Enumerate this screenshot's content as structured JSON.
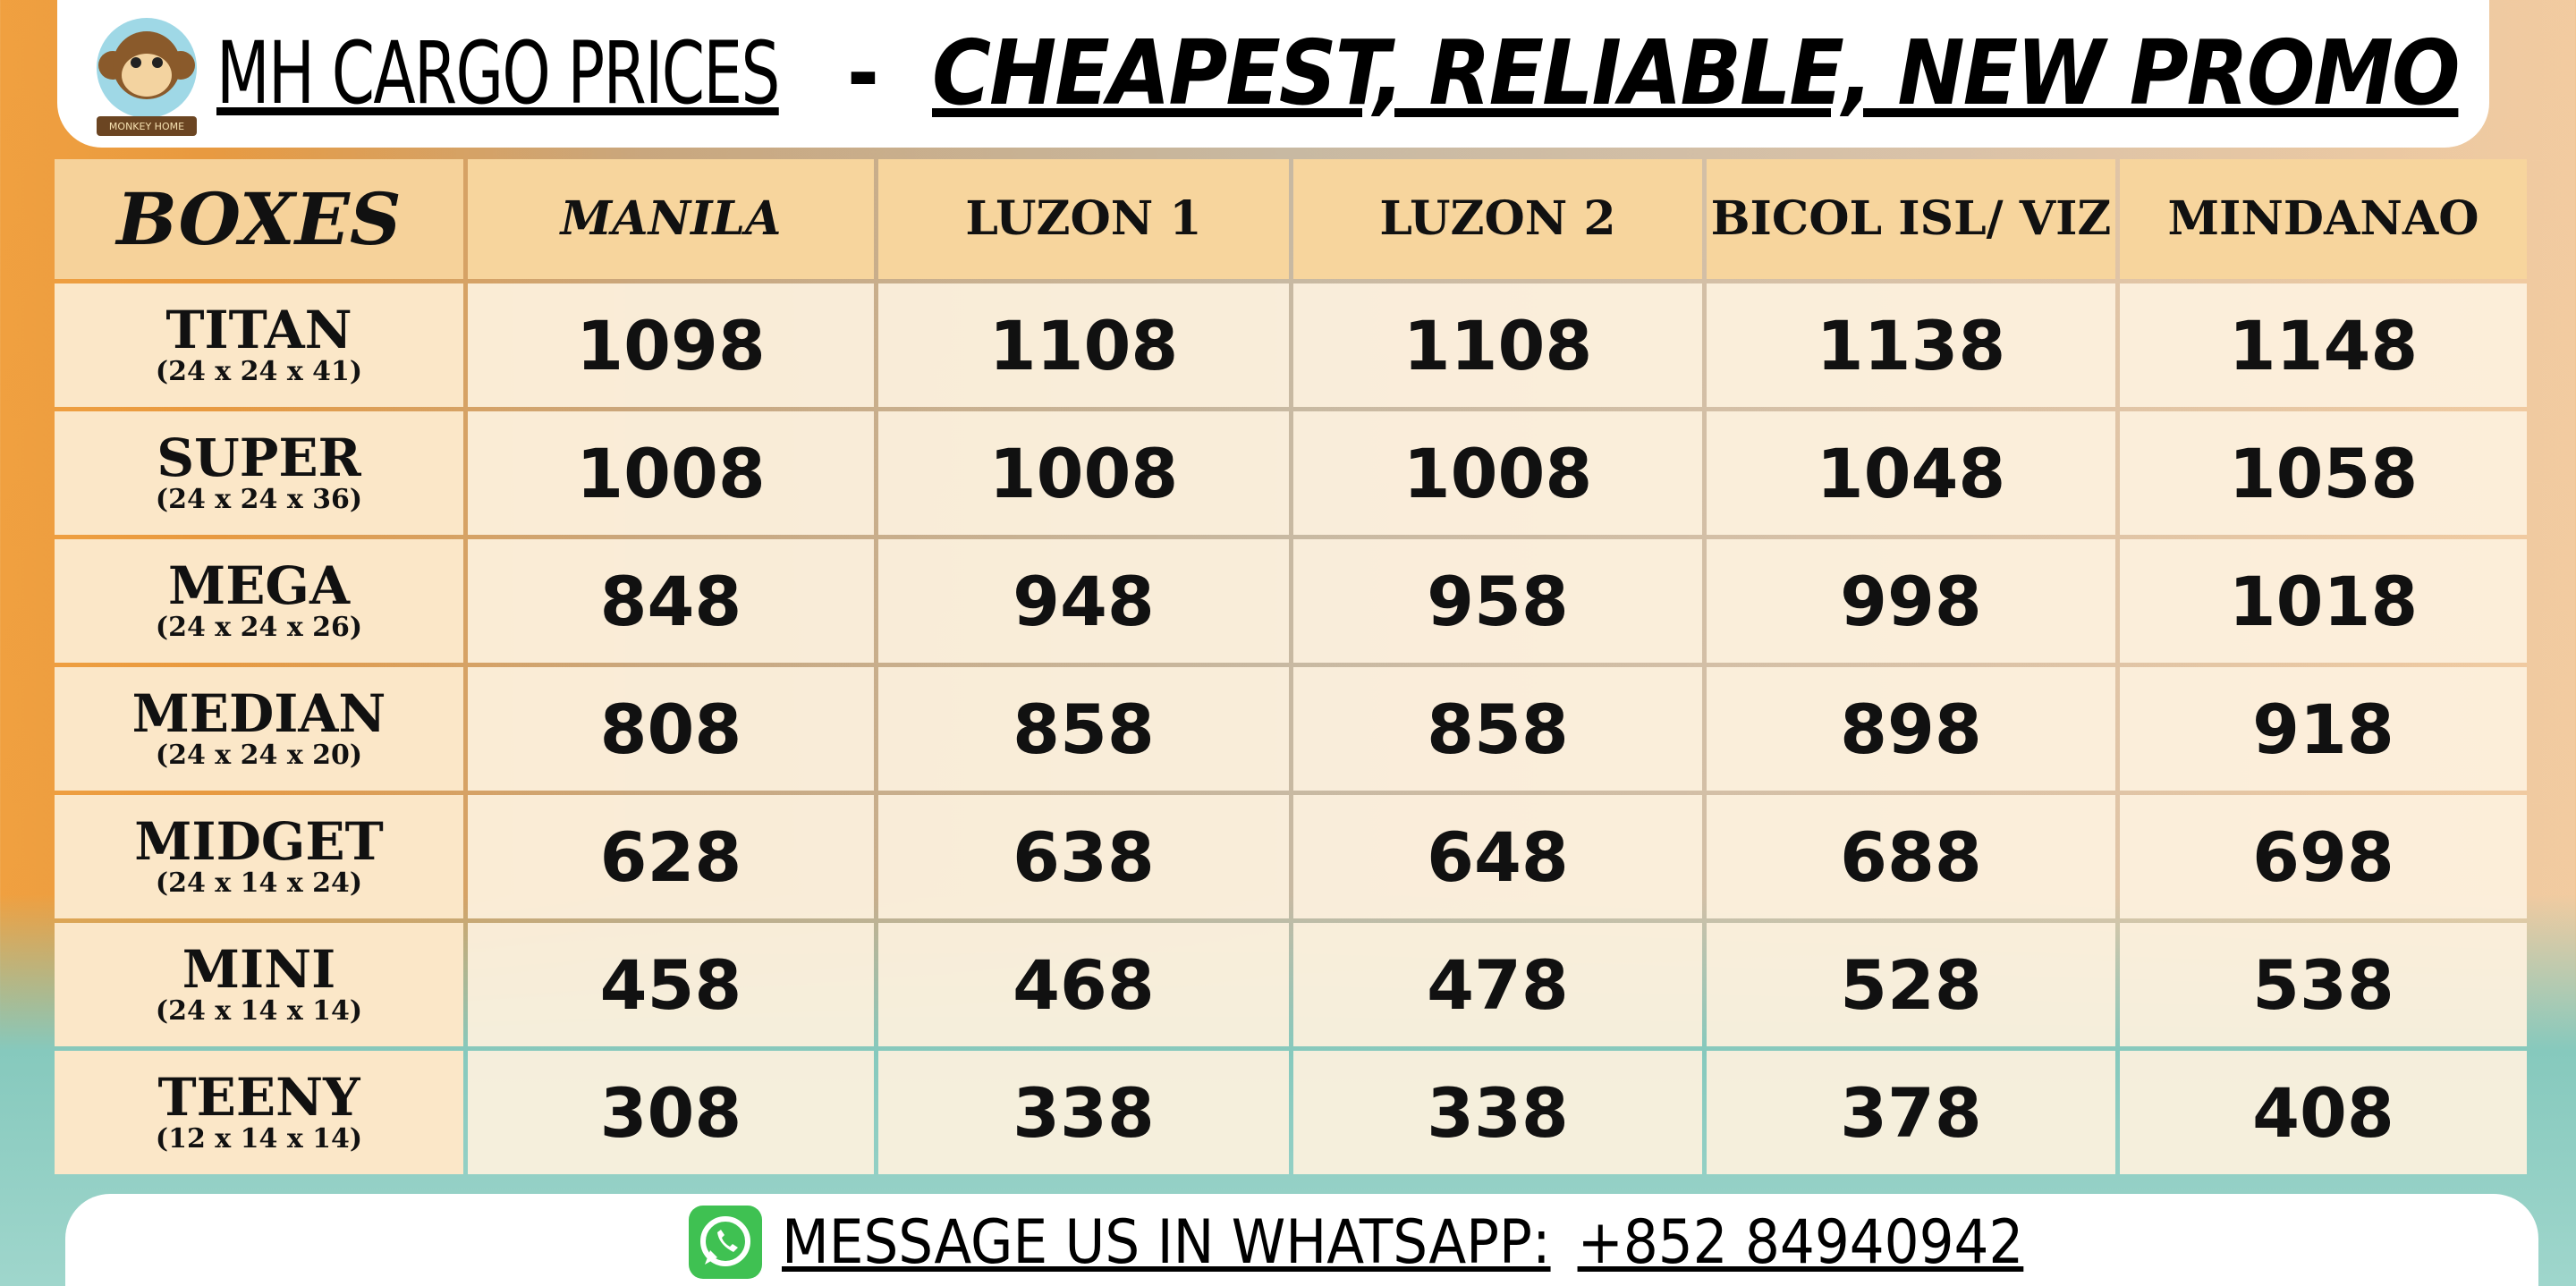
{
  "header": {
    "logo_text": "MONKEY HOME",
    "title": "MH CARGO PRICES",
    "separator": "-",
    "tagline": "CHEAPEST, RELIABLE, NEW PROMO"
  },
  "table": {
    "columns": [
      "BOXES",
      "MANILA",
      "LUZON 1",
      "LUZON 2",
      "BICOL ISL/ VIZ",
      "MINDANAO"
    ],
    "rows": [
      {
        "name": "TITAN",
        "size": "(24 x 24 x 41)",
        "prices": [
          1098,
          1108,
          1108,
          1138,
          1148
        ]
      },
      {
        "name": "SUPER",
        "size": "(24 x 24 x 36)",
        "prices": [
          1008,
          1008,
          1008,
          1048,
          1058
        ]
      },
      {
        "name": "MEGA",
        "size": "(24 x 24 x 26)",
        "prices": [
          848,
          948,
          958,
          998,
          1018
        ]
      },
      {
        "name": "MEDIAN",
        "size": "(24 x 24 x 20)",
        "prices": [
          808,
          858,
          858,
          898,
          918
        ]
      },
      {
        "name": "MIDGET",
        "size": "(24 x 14 x 24)",
        "prices": [
          628,
          638,
          648,
          688,
          698
        ]
      },
      {
        "name": "MINI",
        "size": "(24 x 14 x 14)",
        "prices": [
          458,
          468,
          478,
          528,
          538
        ]
      },
      {
        "name": "TEENY",
        "size": "(12 x 14 x 14)",
        "prices": [
          308,
          338,
          338,
          378,
          408
        ]
      }
    ]
  },
  "footer": {
    "message": "MESSAGE US IN WHATSAPP:",
    "phone": "+852 84940942"
  }
}
